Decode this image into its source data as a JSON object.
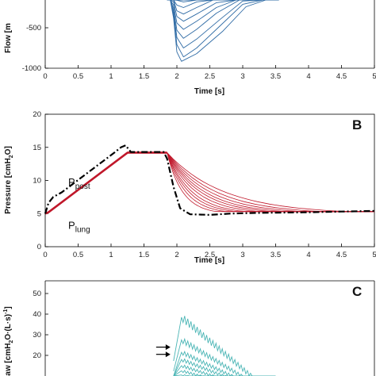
{
  "chart_data": [
    {
      "panel": "A",
      "type": "line",
      "xlabel": "Time [s]",
      "ylabel": "Flow [m",
      "xlim": [
        0,
        5
      ],
      "ylim": [
        -1000,
        100
      ],
      "xticks": [
        "0",
        "0.5",
        "1",
        "1.5",
        "2",
        "2.5",
        "3",
        "3.5",
        "4",
        "4.5",
        "5"
      ],
      "yticks": [
        "-500",
        "-1000"
      ],
      "color": "#2f6ba5",
      "series": [
        {
          "x": [
            1.85,
            1.9,
            1.95,
            2.0,
            2.1,
            2.3,
            2.55,
            2.8,
            3.05,
            3.3
          ],
          "y": [
            80,
            20,
            -60,
            -110,
            -120,
            -70,
            -20,
            10,
            30,
            40
          ]
        },
        {
          "x": [
            1.85,
            1.9,
            1.95,
            2.0,
            2.1,
            2.3,
            2.55,
            2.8,
            3.05,
            3.35
          ],
          "y": [
            80,
            10,
            -90,
            -160,
            -180,
            -120,
            -50,
            -5,
            25,
            40
          ]
        },
        {
          "x": [
            1.85,
            1.9,
            1.95,
            2.0,
            2.1,
            2.3,
            2.55,
            2.8,
            3.1,
            3.4
          ],
          "y": [
            80,
            0,
            -120,
            -220,
            -250,
            -180,
            -90,
            -25,
            20,
            40
          ]
        },
        {
          "x": [
            1.85,
            1.9,
            1.95,
            2.0,
            2.1,
            2.3,
            2.55,
            2.85,
            3.15,
            3.4
          ],
          "y": [
            80,
            -10,
            -150,
            -290,
            -330,
            -250,
            -140,
            -50,
            15,
            40
          ]
        },
        {
          "x": [
            1.85,
            1.9,
            1.95,
            2.0,
            2.1,
            2.3,
            2.6,
            2.9,
            3.2,
            3.45
          ],
          "y": [
            80,
            -15,
            -180,
            -360,
            -420,
            -330,
            -190,
            -70,
            10,
            40
          ]
        },
        {
          "x": [
            1.85,
            1.9,
            1.95,
            2.0,
            2.1,
            2.3,
            2.6,
            2.9,
            3.2,
            3.45
          ],
          "y": [
            80,
            -20,
            -220,
            -440,
            -520,
            -420,
            -250,
            -100,
            5,
            40
          ]
        },
        {
          "x": [
            1.85,
            1.9,
            1.95,
            2.0,
            2.1,
            2.3,
            2.6,
            2.95,
            3.25,
            3.5
          ],
          "y": [
            80,
            -25,
            -260,
            -530,
            -630,
            -520,
            -320,
            -130,
            0,
            40
          ]
        },
        {
          "x": [
            1.85,
            1.9,
            1.95,
            2.0,
            2.1,
            2.3,
            2.65,
            3.0,
            3.3,
            3.5
          ],
          "y": [
            80,
            -30,
            -300,
            -620,
            -750,
            -640,
            -400,
            -170,
            -10,
            40
          ]
        },
        {
          "x": [
            1.85,
            1.9,
            1.95,
            2.0,
            2.1,
            2.3,
            2.65,
            3.0,
            3.3,
            3.55
          ],
          "y": [
            80,
            -35,
            -340,
            -710,
            -860,
            -750,
            -480,
            -210,
            -25,
            40
          ]
        },
        {
          "x": [
            1.85,
            1.9,
            1.95,
            2.0,
            2.07,
            2.3,
            2.7,
            3.05,
            3.35,
            3.55
          ],
          "y": [
            80,
            -40,
            -380,
            -800,
            -915,
            -820,
            -540,
            -240,
            -40,
            40
          ]
        }
      ]
    },
    {
      "panel": "B",
      "type": "line",
      "xlabel": "Time [s]",
      "ylabel": "Pressure [cmH₂O]",
      "xlim": [
        0,
        5
      ],
      "ylim": [
        0,
        20
      ],
      "xticks": [
        "0",
        "0.5",
        "1",
        "1.5",
        "2",
        "2.5",
        "3",
        "3.5",
        "4",
        "4.5",
        "5"
      ],
      "yticks": [
        "0",
        "5",
        "10",
        "15",
        "20"
      ],
      "series": [
        {
          "name": "P post",
          "style": "dash-dot",
          "color": "#000000",
          "x": [
            0,
            0.05,
            0.12,
            0.25,
            1.05,
            1.15,
            1.22,
            1.3,
            1.8,
            1.85,
            1.95,
            2.05,
            2.2,
            2.5,
            2.8,
            3.2,
            4.0,
            4.5,
            5.0
          ],
          "y": [
            5.0,
            6.6,
            7.5,
            8.2,
            14.2,
            15.0,
            15.3,
            14.3,
            14.3,
            13.3,
            9.0,
            5.8,
            4.9,
            4.8,
            5.0,
            5.1,
            5.2,
            5.3,
            5.4
          ]
        },
        {
          "name": "P lung",
          "style": "solid",
          "color": "#c0172a",
          "x": [
            0,
            0.05,
            1.25,
            1.85
          ],
          "y": [
            5.0,
            5.2,
            14.2,
            14.2
          ]
        }
      ],
      "decays": {
        "color": "#c0172a",
        "start_x": 1.85,
        "start_y": 14.2,
        "end_y": 5.3,
        "end_x": [
          2.6,
          2.75,
          2.9,
          3.05,
          3.25,
          3.45,
          3.65,
          3.9,
          4.2,
          4.6
        ]
      },
      "annotations": {
        "post_main": "P",
        "post_sub": "post",
        "lung_main": "P",
        "lung_sub": "lung",
        "post_x": 0.35,
        "post_y": 9.2,
        "lung_x": 0.35,
        "lung_y": 2.7
      }
    },
    {
      "panel": "C",
      "type": "line",
      "ylabel": "aw [cmH₂O·(L·s)⁻¹]",
      "xlim": [
        0,
        5
      ],
      "ylim": [
        0,
        50
      ],
      "yticks": [
        "20",
        "30",
        "40",
        "50"
      ],
      "color": "#4ab5b5",
      "series": [
        {
          "peak": 38.5
        },
        {
          "peak": 27.5
        },
        {
          "peak": 21.5
        },
        {
          "peak": 18.0
        },
        {
          "peak": 15.0
        },
        {
          "peak": 12.5
        },
        {
          "peak": 10.5
        }
      ],
      "start_x": 1.95,
      "peak_x": 2.07,
      "end_x": 3.5,
      "end_y": 0,
      "arrows": [
        {
          "y": 24
        },
        {
          "y": 20.5
        }
      ]
    }
  ],
  "labels": {
    "panel_a_xlabel": "Time [s]",
    "panel_a_ylabel": "Flow [m",
    "panel_b_xlabel": "Time [s]",
    "panel_b_ylabel_pre": "Pressure [cmH",
    "panel_b_ylabel_sub": "2",
    "panel_b_ylabel_post": "O]",
    "panel_b_letter": "B",
    "panel_c_letter": "C",
    "panel_c_ylabel_pre": "aw [cmH",
    "panel_c_ylabel_sub": "2",
    "panel_c_ylabel_post": "O·(L·s)",
    "panel_c_ylabel_sup": "-1",
    "panel_c_ylabel_end": "]"
  }
}
